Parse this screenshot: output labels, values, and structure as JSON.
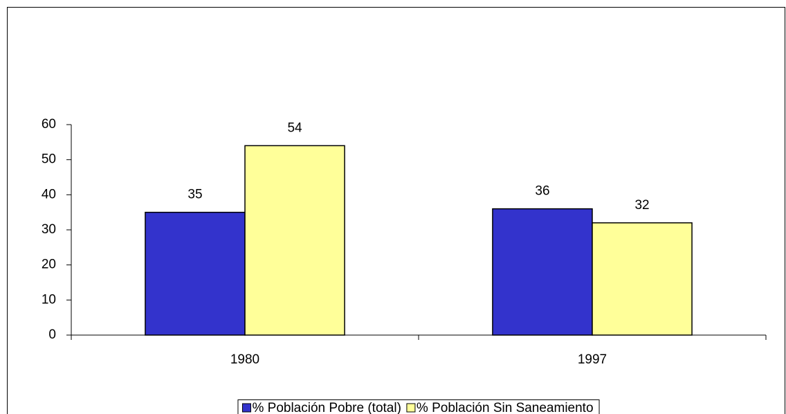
{
  "chart_data": {
    "type": "bar",
    "categories": [
      "1980",
      "1997"
    ],
    "series": [
      {
        "name": "% Población Pobre (total)",
        "color": "#3333cc",
        "values": [
          35,
          36
        ]
      },
      {
        "name": "% Población Sin Saneamiento",
        "color": "#ffff99",
        "values": [
          54,
          32
        ]
      }
    ],
    "ylim": [
      0,
      60
    ],
    "yticks": [
      0,
      10,
      20,
      30,
      40,
      50,
      60
    ],
    "data_labels": true,
    "legend": "bottom"
  }
}
